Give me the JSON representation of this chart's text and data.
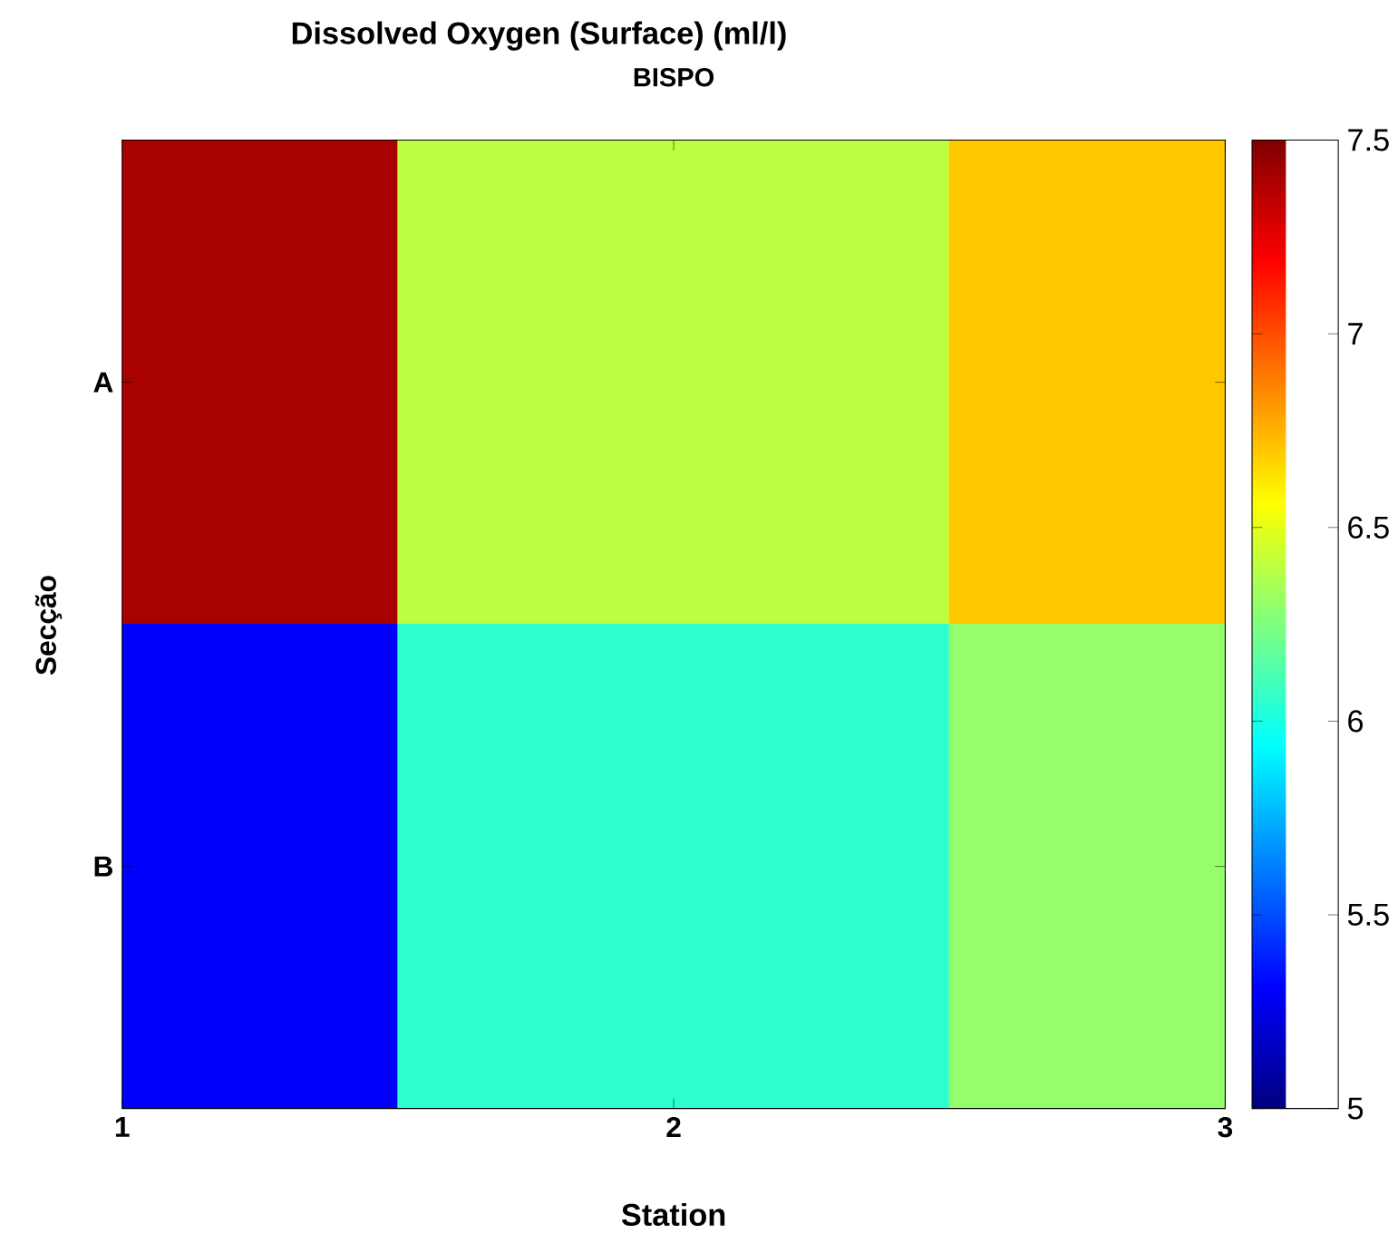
{
  "chart_data": {
    "type": "heatmap",
    "title": "Dissolved Oxygen (Surface) (ml/l)",
    "subtitle": "BISPO",
    "xlabel": "Station",
    "ylabel": "Secção",
    "categories": [
      "1",
      "2",
      "3"
    ],
    "y_categories": [
      "A",
      "B"
    ],
    "cells": [
      [
        7.4,
        6.4,
        6.7
      ],
      [
        5.3,
        6.05,
        6.3
      ]
    ],
    "clim": [
      5,
      7.5
    ],
    "cticks": [
      5,
      5.5,
      6,
      6.5,
      7,
      7.5
    ]
  }
}
